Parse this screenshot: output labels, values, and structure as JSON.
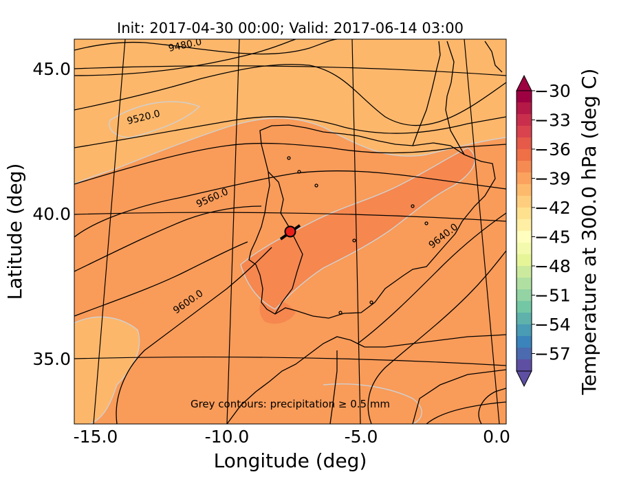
{
  "title": "Init: 2017-04-30 00:00; Valid: 2017-06-14 03:00",
  "xlabel": "Longitude (deg)",
  "ylabel": "Latitude (deg)",
  "x_ticks": [
    "-15.0",
    "-10.0",
    "-5.0",
    "0.0"
  ],
  "y_ticks": [
    "45.0",
    "40.0",
    "35.0"
  ],
  "colorbar": {
    "label": "Temperature at 300.0 hPa (deg C)",
    "ticks": [
      "−30",
      "−33",
      "−36",
      "−39",
      "−42",
      "−45",
      "−48",
      "−51",
      "−54",
      "−57"
    ],
    "colors": [
      "#9e0142",
      "#b41947",
      "#c92f4c",
      "#d8434e",
      "#e55a49",
      "#ef6f46",
      "#f58a53",
      "#fba35e",
      "#fdba6d",
      "#fece7e",
      "#fee18f",
      "#ffefa4",
      "#fffebe",
      "#f3faad",
      "#e6f598",
      "#ccea9d",
      "#b0dfa2",
      "#93d3a4",
      "#74c7a5",
      "#5eb2ab",
      "#4a9bb4",
      "#3a84bb",
      "#4c6aaf",
      "#5e4fa2"
    ]
  },
  "contour_labels": [
    "9480.0",
    "9520.0",
    "9560.0",
    "9600.0",
    "9640.0"
  ],
  "annotation": "Grey contours: precipitation ≥ 0.5 mm",
  "colors": {
    "base": "#f99b59",
    "light": "#fdb76b",
    "warm": "#f5874f",
    "precip_contour": "#d0d0d0"
  },
  "marker": {
    "color": "#e8201a"
  }
}
